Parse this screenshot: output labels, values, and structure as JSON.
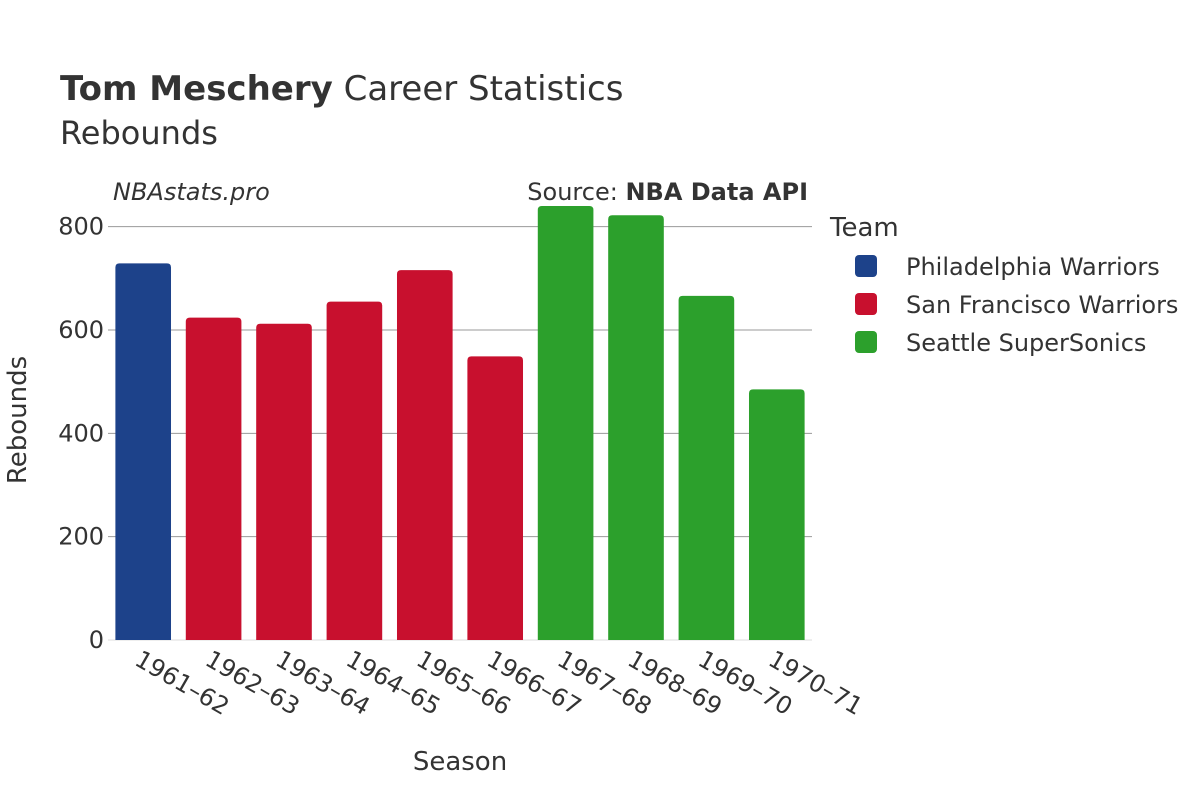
{
  "title": {
    "name": "Tom Meschery",
    "rest": " Career Statistics",
    "subtitle": "Rebounds"
  },
  "watermark": "NBAstats.pro",
  "source": {
    "prefix": "Source: ",
    "name": "NBA Data API"
  },
  "chart_data": {
    "type": "bar",
    "title": "Tom Meschery Career Statistics",
    "subtitle": "Rebounds",
    "xlabel": "Season",
    "ylabel": "Rebounds",
    "ylim": [
      0,
      900
    ],
    "yticks": [
      0,
      200,
      400,
      600,
      800
    ],
    "categories": [
      "1961–62",
      "1962–63",
      "1963–64",
      "1964–65",
      "1965–66",
      "1966–67",
      "1967–68",
      "1968–69",
      "1969–70",
      "1970–71"
    ],
    "values": [
      729,
      624,
      612,
      655,
      716,
      549,
      840,
      822,
      666,
      485
    ],
    "teams": [
      "Philadelphia Warriors",
      "San Francisco Warriors",
      "San Francisco Warriors",
      "San Francisco Warriors",
      "San Francisco Warriors",
      "San Francisco Warriors",
      "Seattle SuperSonics",
      "Seattle SuperSonics",
      "Seattle SuperSonics",
      "Seattle SuperSonics"
    ],
    "legend": {
      "title": "Team",
      "position": "right",
      "entries": [
        {
          "name": "Philadelphia Warriors",
          "color": "#1d428a"
        },
        {
          "name": "San Francisco Warriors",
          "color": "#c8102e"
        },
        {
          "name": "Seattle SuperSonics",
          "color": "#2ca02c"
        }
      ]
    },
    "grid": true
  }
}
